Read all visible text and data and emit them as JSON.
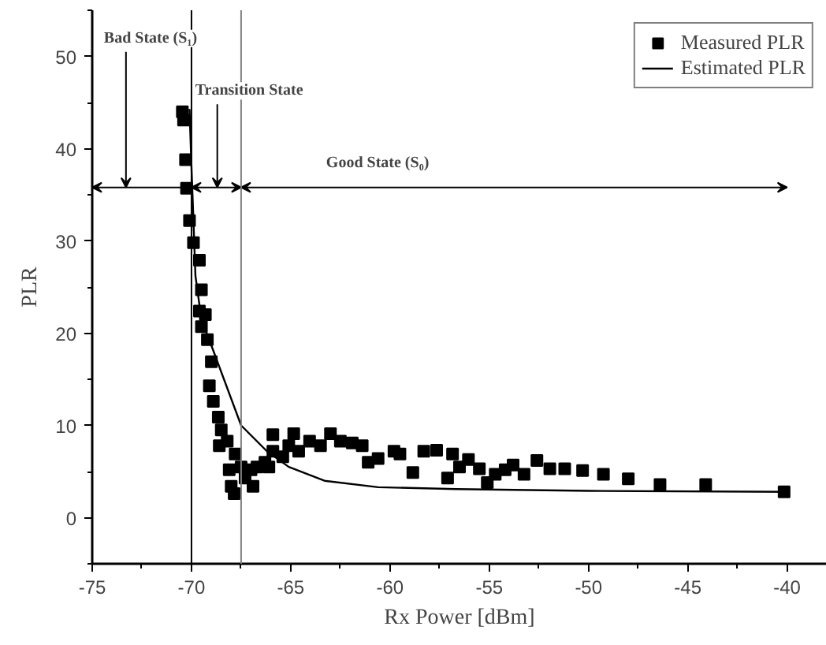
{
  "chart_data": {
    "type": "scatter",
    "xlabel": "Rx Power [dBm]",
    "ylabel": "PLR",
    "xlim": [
      -75,
      -38
    ],
    "ylim": [
      -5,
      55
    ],
    "xticks": [
      -75,
      -70,
      -65,
      -60,
      -55,
      -50,
      -45,
      -40
    ],
    "yticks": [
      0,
      10,
      20,
      30,
      40,
      50
    ],
    "legend": "top right",
    "grid": false,
    "marker": "square",
    "series": [
      {
        "name": "Measured PLR",
        "color": "#000000",
        "x": [
          -70.46,
          -70.4,
          -70.3,
          -70.25,
          -70.1,
          -69.9,
          -69.6,
          -69.5,
          -69.3,
          -69.6,
          -69.5,
          -69.2,
          -69.0,
          -69.1,
          -68.9,
          -68.65,
          -68.5,
          -68.6,
          -68.2,
          -68.1,
          -68.0,
          -67.85,
          -67.8,
          -67.5,
          -67.3,
          -67.0,
          -66.9,
          -66.7,
          -66.3,
          -66.1,
          -65.9,
          -65.9,
          -65.4,
          -65.1,
          -64.85,
          -64.6,
          -64.05,
          -63.5,
          -63.0,
          -62.5,
          -61.9,
          -61.4,
          -61.1,
          -60.6,
          -59.8,
          -59.5,
          -58.85,
          -58.3,
          -57.65,
          -57.1,
          -56.85,
          -56.5,
          -56.05,
          -55.5,
          -55.1,
          -54.7,
          -54.2,
          -53.8,
          -53.25,
          -52.6,
          -51.95,
          -51.2,
          -50.3,
          -49.25,
          -48.0,
          -46.4,
          -44.1,
          -40.15
        ],
        "values": [
          44,
          43.1,
          38.8,
          35.7,
          32.2,
          29.8,
          27.9,
          24.7,
          22,
          22.4,
          20.7,
          19.3,
          16.9,
          14.3,
          12.6,
          10.9,
          9.5,
          7.8,
          8.3,
          5.2,
          3.4,
          2.6,
          6.9,
          5.5,
          4.3,
          5.2,
          3.4,
          5.5,
          6.0,
          5.5,
          9.0,
          7.2,
          6.6,
          7.8,
          9.1,
          7.2,
          8.3,
          7.8,
          9.1,
          8.3,
          8.1,
          7.8,
          6.0,
          6.4,
          7.2,
          6.9,
          4.9,
          7.2,
          7.3,
          4.3,
          6.9,
          5.5,
          6.3,
          5.3,
          3.8,
          4.7,
          5.2,
          5.7,
          4.7,
          6.2,
          5.3,
          5.3,
          5.1,
          4.7,
          4.2,
          3.6,
          3.6,
          2.8
        ]
      },
      {
        "name": "Estimated PLR",
        "type": "line",
        "marker": "none",
        "color": "#000000",
        "line_style": "solid",
        "x": [
          -70.1,
          -70.0,
          -69.8,
          -69.5,
          -68.9,
          -67.5,
          -66.2,
          -65.1,
          -63.3,
          -60.6,
          -56.7,
          -50,
          -40
        ],
        "values": [
          44.3,
          38,
          26.2,
          21.5,
          18.1,
          10,
          7.2,
          5.5,
          4.0,
          3.3,
          3.1,
          2.9,
          2.8
        ]
      }
    ],
    "ref_lines": [
      {
        "axis": "x",
        "value": -70,
        "color": "#000000"
      },
      {
        "axis": "x",
        "value": -67.5,
        "color": "#808080"
      }
    ],
    "annotations": [
      "Bad State (S₁)",
      "Transition State",
      "Good State (S₀)"
    ]
  }
}
